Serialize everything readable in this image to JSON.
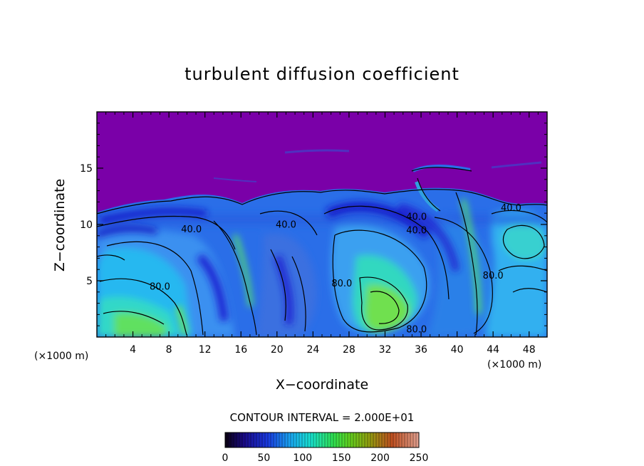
{
  "chart_data": {
    "type": "heatmap",
    "title": "turbulent diffusion coefficient",
    "xlabel": "X−coordinate",
    "ylabel": "Z−coordinate",
    "x_unit": "(×1000 m)",
    "y_unit": "(×1000 m)",
    "xlim": [
      0,
      50
    ],
    "ylim": [
      0,
      20
    ],
    "x_ticks": [
      4,
      8,
      12,
      16,
      20,
      24,
      28,
      32,
      36,
      40,
      44,
      48
    ],
    "y_ticks": [
      5,
      10,
      15
    ],
    "contour_interval_text": "CONTOUR INTERVAL = 2.000E+01",
    "colorbar": {
      "min": 0,
      "max": 250,
      "ticks": [
        0,
        50,
        100,
        150,
        200,
        250
      ]
    },
    "contour_labels": [
      {
        "text": "40.0",
        "x": 10.5,
        "z": 9.3
      },
      {
        "text": "40.0",
        "x": 21,
        "z": 9.7
      },
      {
        "text": "40.0",
        "x": 35.5,
        "z": 10.4
      },
      {
        "text": "40.0",
        "x": 35.5,
        "z": 9.2
      },
      {
        "text": "40.0",
        "x": 46,
        "z": 11.2
      },
      {
        "text": "80.0",
        "x": 7,
        "z": 4.2
      },
      {
        "text": "80.0",
        "x": 27.2,
        "z": 4.5
      },
      {
        "text": "80.0",
        "x": 44,
        "z": 5.2
      },
      {
        "text": "80.0",
        "x": 35.5,
        "z": 0.4
      }
    ]
  },
  "colors": {
    "background_high": "#7a00a8",
    "deep_blue": "#2020d8",
    "mid_blue": "#3a7ae8",
    "cyan": "#18d8e8",
    "green": "#58e860",
    "contour_line": "#000000"
  }
}
